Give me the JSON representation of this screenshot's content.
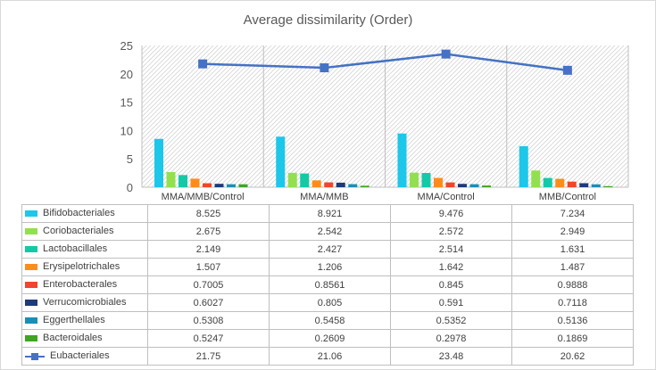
{
  "chart_data": {
    "type": "bar",
    "title": "Average dissimilarity (Order)",
    "categories": [
      "MMA/MMB/Control",
      "MMA/MMB",
      "MMA/Control",
      "MMB/Control"
    ],
    "ylim": [
      0,
      25
    ],
    "yticks": [
      0,
      5,
      10,
      15,
      20,
      25
    ],
    "legend": "data-table-below",
    "grid": false,
    "series": [
      {
        "name": "Bifidobacteriales",
        "type": "bar",
        "color": "#1CC7EA",
        "values": [
          8.525,
          8.921,
          9.476,
          7.234
        ],
        "labels": [
          "8.525",
          "8.921",
          "9.476",
          "7.234"
        ]
      },
      {
        "name": "Coriobacteriales",
        "type": "bar",
        "color": "#92E04F",
        "values": [
          2.675,
          2.542,
          2.572,
          2.949
        ],
        "labels": [
          "2.675",
          "2.542",
          "2.572",
          "2.949"
        ]
      },
      {
        "name": "Lactobacillales",
        "type": "bar",
        "color": "#14C9A8",
        "values": [
          2.149,
          2.427,
          2.514,
          1.631
        ],
        "labels": [
          "2.149",
          "2.427",
          "2.514",
          "1.631"
        ]
      },
      {
        "name": "Erysipelotrichales",
        "type": "bar",
        "color": "#FF8C1A",
        "values": [
          1.507,
          1.206,
          1.642,
          1.487
        ],
        "labels": [
          "1.507",
          "1.206",
          "1.642",
          "1.487"
        ]
      },
      {
        "name": "Enterobacterales",
        "type": "bar",
        "color": "#F0462A",
        "values": [
          0.7005,
          0.8561,
          0.845,
          0.9888
        ],
        "labels": [
          "0.7005",
          "0.8561",
          "0.845",
          "0.9888"
        ]
      },
      {
        "name": "Verrucomicrobiales",
        "type": "bar",
        "color": "#1F3A7A",
        "values": [
          0.6027,
          0.805,
          0.591,
          0.7118
        ],
        "labels": [
          "0.6027",
          "0.805",
          "0.591",
          "0.7118"
        ]
      },
      {
        "name": "Eggerthellales",
        "type": "bar",
        "color": "#1A8FB5",
        "values": [
          0.5308,
          0.5458,
          0.5352,
          0.5136
        ],
        "labels": [
          "0.5308",
          "0.5458",
          "0.5352",
          "0.5136"
        ]
      },
      {
        "name": "Bacteroidales",
        "type": "bar",
        "color": "#3FA61F",
        "values": [
          0.5247,
          0.2609,
          0.2978,
          0.1869
        ],
        "labels": [
          "0.5247",
          "0.2609",
          "0.2978",
          "0.1869"
        ]
      },
      {
        "name": "Eubacteriales",
        "type": "line",
        "color": "#4472C4",
        "values": [
          21.75,
          21.06,
          23.48,
          20.62
        ],
        "labels": [
          "21.75",
          "21.06",
          "23.48",
          "20.62"
        ]
      }
    ]
  }
}
